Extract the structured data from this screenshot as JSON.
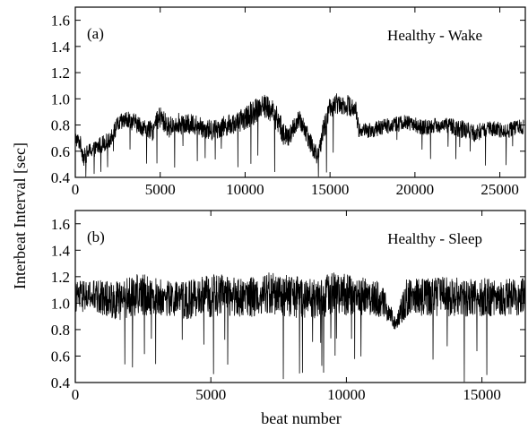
{
  "figure": {
    "ylabel": "Interbeat Interval [sec]",
    "xlabel": "beat number"
  },
  "chart_data": [
    {
      "type": "line",
      "panel_label": "(a)",
      "title": "Healthy - Wake",
      "xlabel": "",
      "ylabel": "Interbeat Interval [sec]",
      "xlim": [
        0,
        26500
      ],
      "ylim": [
        0.4,
        1.7
      ],
      "xticks": [
        "0",
        "5000",
        "10000",
        "15000",
        "20000",
        "25000"
      ],
      "xtick_values": [
        0,
        5000,
        10000,
        15000,
        20000,
        25000
      ],
      "yticks": [
        "0.4",
        "0.6",
        "0.8",
        "1.0",
        "1.2",
        "1.4",
        "1.6"
      ],
      "ytick_values": [
        0.4,
        0.6,
        0.8,
        1.0,
        1.2,
        1.4,
        1.6
      ],
      "grid": false,
      "series_color": "#000000",
      "series": [
        {
          "x": [
            0,
            300,
            500,
            800,
            1200,
            1600,
            2000,
            2500,
            3000,
            3500,
            4000,
            4500,
            5000,
            5500,
            6000,
            6500,
            7000,
            7500,
            8000,
            8500,
            9000,
            9500,
            10000,
            10500,
            11000,
            11500,
            12000,
            12300,
            12600,
            12900,
            13200,
            13600,
            14000,
            14300,
            14600,
            15000,
            15500,
            16000,
            16500,
            16700,
            17500,
            18500,
            19500,
            20500,
            21500,
            22500,
            23500,
            24500,
            25500,
            26400
          ],
          "y": [
            0.7,
            0.66,
            0.55,
            0.6,
            0.62,
            0.66,
            0.68,
            0.8,
            0.84,
            0.82,
            0.78,
            0.75,
            0.86,
            0.78,
            0.82,
            0.8,
            0.81,
            0.78,
            0.76,
            0.78,
            0.8,
            0.82,
            0.85,
            0.9,
            0.96,
            0.92,
            0.82,
            0.72,
            0.7,
            0.8,
            0.83,
            0.75,
            0.62,
            0.55,
            0.75,
            0.94,
            0.97,
            0.95,
            0.93,
            0.76,
            0.76,
            0.8,
            0.82,
            0.78,
            0.8,
            0.78,
            0.74,
            0.77,
            0.76,
            0.79
          ],
          "amp": [
            0.06,
            0.06,
            0.07,
            0.06,
            0.06,
            0.07,
            0.06,
            0.07,
            0.07,
            0.07,
            0.07,
            0.08,
            0.09,
            0.08,
            0.08,
            0.08,
            0.08,
            0.08,
            0.08,
            0.08,
            0.08,
            0.08,
            0.09,
            0.1,
            0.1,
            0.1,
            0.1,
            0.09,
            0.08,
            0.08,
            0.08,
            0.08,
            0.08,
            0.07,
            0.09,
            0.09,
            0.08,
            0.08,
            0.08,
            0.06,
            0.06,
            0.06,
            0.06,
            0.06,
            0.06,
            0.07,
            0.07,
            0.06,
            0.06,
            0.06
          ]
        }
      ]
    },
    {
      "type": "line",
      "panel_label": "(b)",
      "title": "Healthy - Sleep",
      "xlabel": "beat number",
      "ylabel": "Interbeat Interval [sec]",
      "xlim": [
        0,
        16600
      ],
      "ylim": [
        0.4,
        1.7
      ],
      "xticks": [
        "0",
        "5000",
        "10000",
        "15000"
      ],
      "xtick_values": [
        0,
        5000,
        10000,
        15000
      ],
      "yticks": [
        "0.4",
        "0.6",
        "0.8",
        "1.0",
        "1.2",
        "1.4",
        "1.6"
      ],
      "ytick_values": [
        0.4,
        0.6,
        0.8,
        1.0,
        1.2,
        1.4,
        1.6
      ],
      "grid": false,
      "series_color": "#000000",
      "series": [
        {
          "x": [
            0,
            800,
            1600,
            2400,
            3200,
            4000,
            4800,
            5600,
            6400,
            7200,
            8000,
            8800,
            9600,
            10400,
            11000,
            11400,
            11800,
            12200,
            13000,
            14000,
            15000,
            16000,
            16600
          ],
          "y": [
            1.05,
            1.05,
            1.02,
            1.07,
            1.04,
            1.02,
            1.05,
            1.06,
            1.04,
            1.08,
            1.05,
            1.03,
            1.08,
            1.05,
            1.05,
            1.0,
            0.84,
            1.04,
            1.05,
            1.05,
            1.04,
            1.05,
            1.05
          ],
          "amp": [
            0.12,
            0.13,
            0.15,
            0.16,
            0.14,
            0.14,
            0.16,
            0.16,
            0.15,
            0.16,
            0.16,
            0.15,
            0.16,
            0.15,
            0.14,
            0.12,
            0.05,
            0.15,
            0.15,
            0.15,
            0.15,
            0.15,
            0.14
          ]
        }
      ]
    }
  ]
}
